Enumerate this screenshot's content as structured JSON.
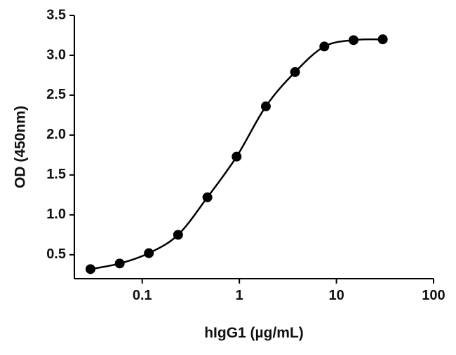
{
  "chart_data": {
    "type": "scatter",
    "x_label": "hIgG1 (µg/mL)",
    "y_label": "OD (450nm)",
    "x_scale": "log",
    "color": "#000000",
    "fit_curve": true,
    "x": [
      0.0293,
      0.0586,
      0.117,
      0.234,
      0.469,
      0.9375,
      1.875,
      3.75,
      7.5,
      15,
      30
    ],
    "values": [
      0.32,
      0.39,
      0.52,
      0.75,
      1.22,
      1.73,
      2.36,
      2.79,
      3.11,
      3.19,
      3.2
    ],
    "xlim": [
      0.02,
      100
    ],
    "xticks": [
      0.1,
      1,
      10,
      100
    ],
    "ylim": [
      0.2,
      3.5
    ],
    "yticks": [
      0.5,
      {
        "value": 1,
        "label": "1.0"
      },
      1.5,
      {
        "value": 2,
        "label": "2.0"
      },
      2.5,
      {
        "value": 3,
        "label": "3.0"
      },
      3.5
    ]
  }
}
